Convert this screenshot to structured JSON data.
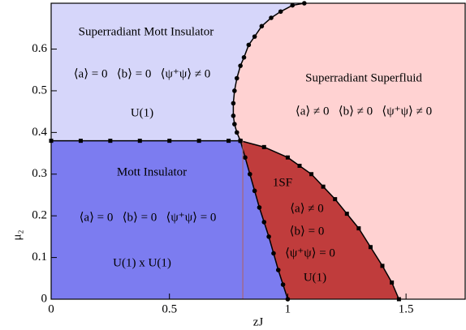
{
  "chart_data": {
    "type": "phase",
    "xlabel": "zJ",
    "ylabel": "μ₂",
    "xlim": [
      0,
      1.75
    ],
    "ylim": [
      0,
      0.71
    ],
    "xticks": [
      0,
      0.5,
      1,
      1.5
    ],
    "yticks": [
      0,
      0.1,
      0.2,
      0.3,
      0.4,
      0.5,
      0.6
    ],
    "region_colors": [
      "#ffd2d2",
      "#d6d6fa",
      "#7c7cf0",
      "#c03c3c"
    ],
    "series": [
      {
        "color": "#000000",
        "marker": "square",
        "x": [
          0,
          0.125,
          0.25,
          0.375,
          0.5,
          0.625,
          0.75,
          0.8
        ],
        "y": [
          0.38,
          0.38,
          0.38,
          0.38,
          0.38,
          0.38,
          0.38,
          0.38
        ]
      },
      {
        "color": "#000000",
        "marker": "circle",
        "x": [
          0.8,
          0.785,
          0.775,
          0.77,
          0.77,
          0.775,
          0.785,
          0.8,
          0.815,
          0.835,
          0.86,
          0.89,
          0.93,
          0.97,
          1.02,
          1.07
        ],
        "y": [
          0.38,
          0.4,
          0.42,
          0.44,
          0.47,
          0.5,
          0.53,
          0.56,
          0.58,
          0.61,
          0.63,
          0.655,
          0.675,
          0.69,
          0.705,
          0.71
        ]
      },
      {
        "color": "#000000",
        "marker": "circle",
        "x": [
          0.8,
          0.82,
          0.84,
          0.86,
          0.88,
          0.9,
          0.92,
          0.94,
          0.96,
          0.98,
          1.0
        ],
        "y": [
          0.38,
          0.34,
          0.3,
          0.26,
          0.22,
          0.185,
          0.15,
          0.11,
          0.07,
          0.035,
          0
        ]
      },
      {
        "color": "#000000",
        "marker": "square",
        "x": [
          0.8,
          0.9,
          1.0,
          1.05,
          1.1,
          1.15,
          1.2,
          1.25,
          1.3,
          1.35,
          1.4,
          1.44,
          1.47
        ],
        "y": [
          0.38,
          0.365,
          0.34,
          0.32,
          0.3,
          0.27,
          0.24,
          0.205,
          0.17,
          0.125,
          0.08,
          0.04,
          0
        ]
      },
      {
        "color": "#b06060",
        "marker": "none",
        "x": [
          0.81,
          0.81
        ],
        "y": [
          0,
          0.38
        ]
      }
    ],
    "annotations": [
      "Superradiant Mott Insulator",
      "⟨a⟩ = 0   ⟨b⟩ = 0   ⟨ψ⁺ψ⟩ ≠ 0",
      "U(1)",
      "Superradiant Superfluid",
      "⟨a⟩ ≠ 0   ⟨b⟩ ≠ 0   ⟨ψ⁺ψ⟩ ≠ 0",
      "Mott Insulator",
      "⟨a⟩ = 0   ⟨b⟩ = 0   ⟨ψ⁺ψ⟩ = 0",
      "U(1) x U(1)",
      "1SF",
      "⟨a⟩ ≠ 0",
      "⟨b⟩ = 0",
      "⟨ψ⁺ψ⟩ = 0",
      "U(1)"
    ]
  }
}
